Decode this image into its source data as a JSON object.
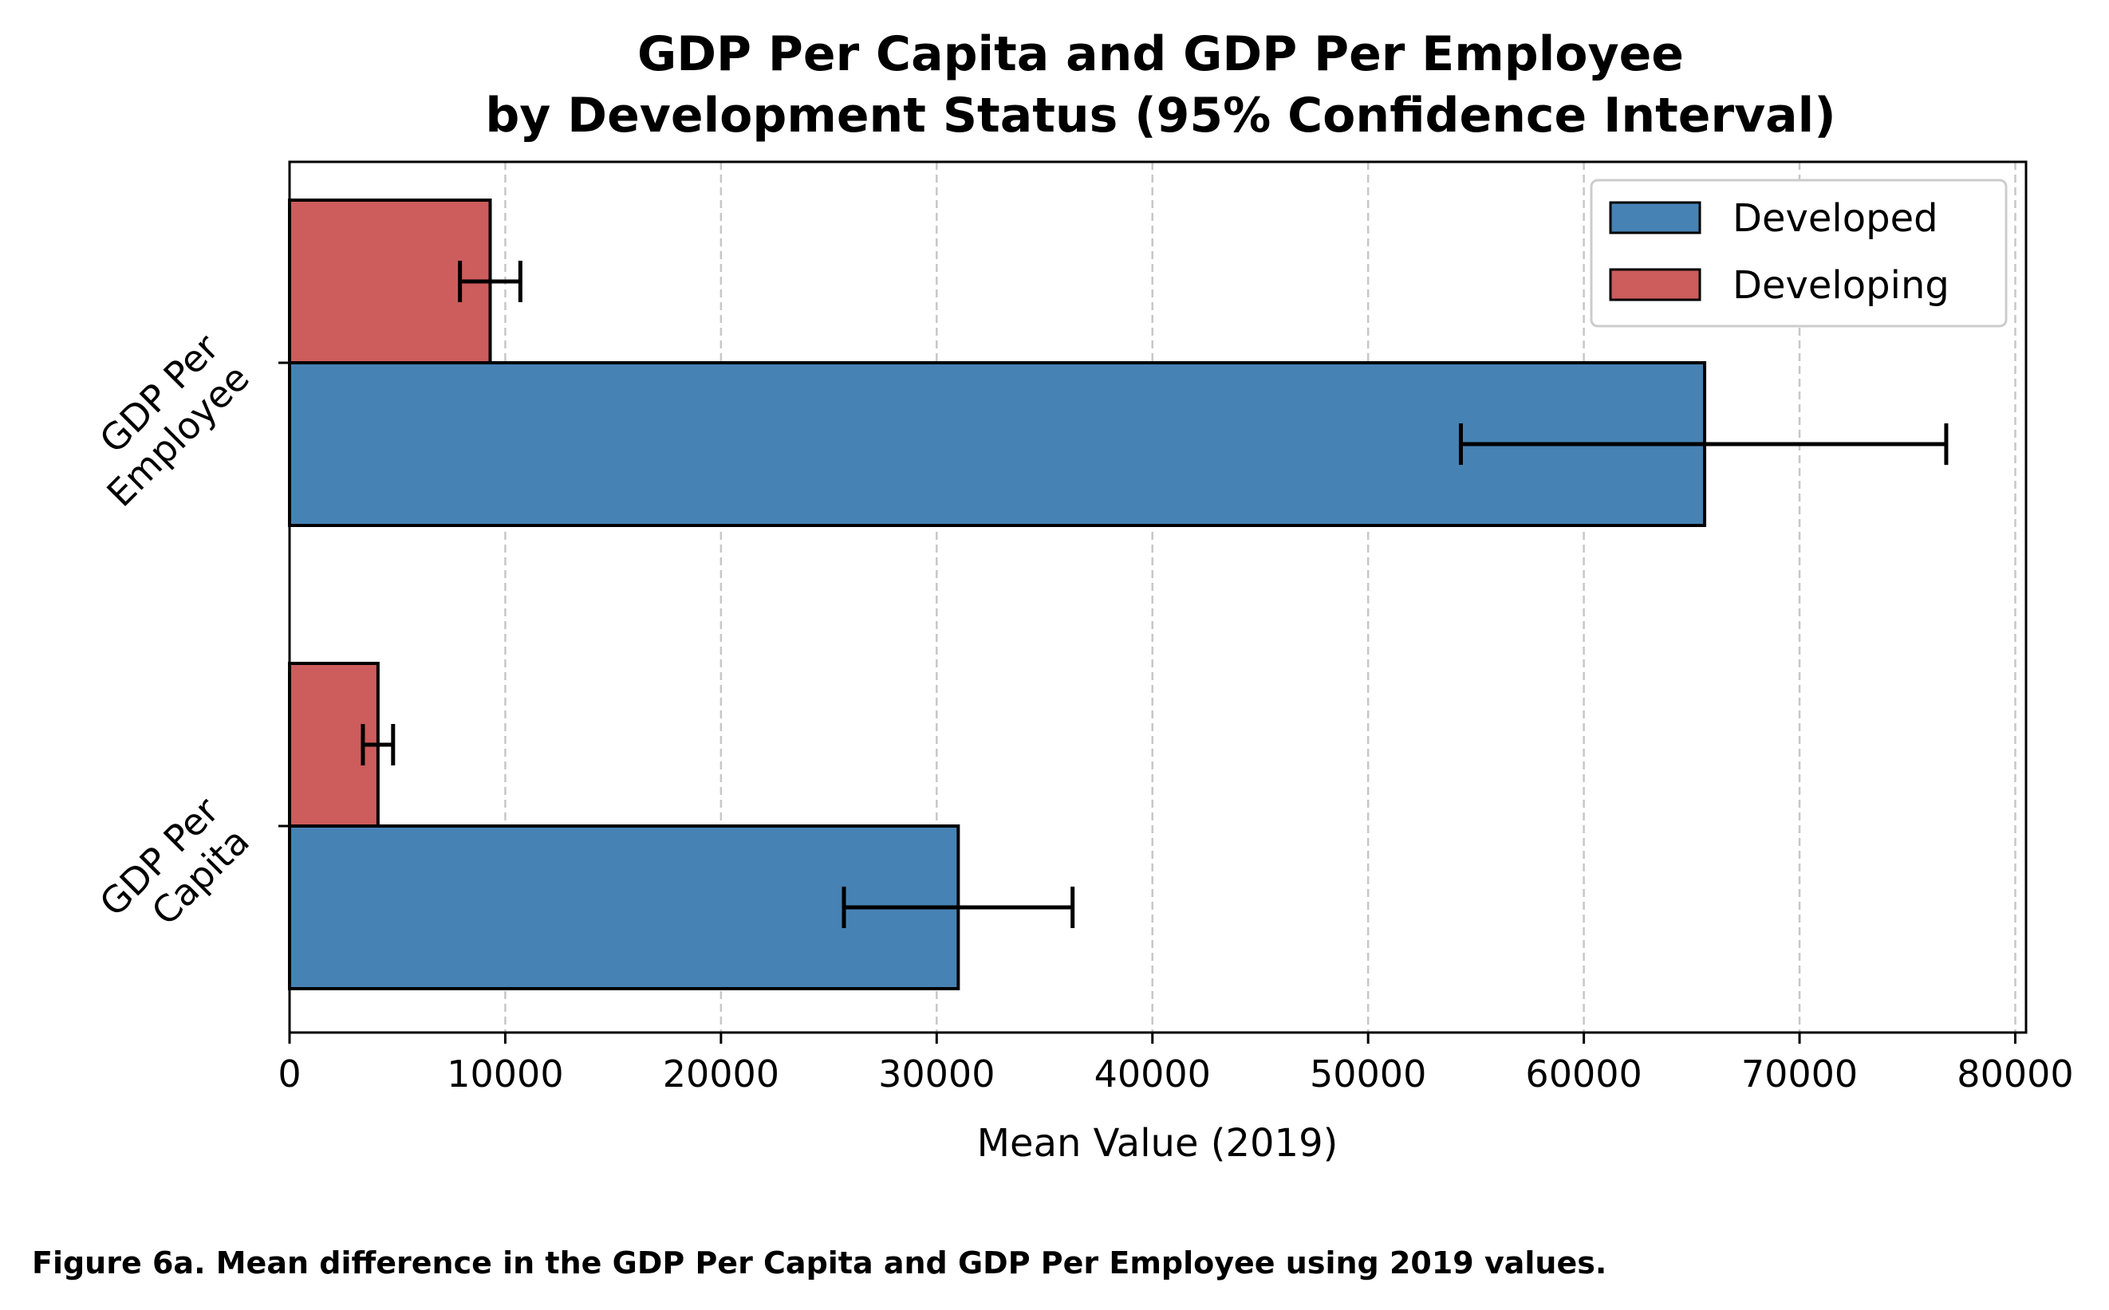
{
  "chart_data": {
    "type": "bar",
    "orientation": "horizontal",
    "title": [
      "GDP Per Capita and GDP Per Employee",
      "by Development Status (95% Confidence Interval)"
    ],
    "categories": [
      {
        "lines": [
          "GDP Per",
          "Capita"
        ]
      },
      {
        "lines": [
          "GDP Per",
          "Employee"
        ]
      }
    ],
    "series": [
      {
        "name": "Developed",
        "color": "#4682b4",
        "values": [
          31000,
          65600
        ],
        "ci_low": [
          25700,
          54300
        ],
        "ci_high": [
          36300,
          76800
        ]
      },
      {
        "name": "Developing",
        "color": "#cd5c5c",
        "values": [
          4100,
          9300
        ],
        "ci_low": [
          3400,
          7900
        ],
        "ci_high": [
          4800,
          10700
        ]
      }
    ],
    "xlabel": "Mean Value (2019)",
    "xlim": [
      0,
      80500
    ],
    "xticks": [
      0,
      10000,
      20000,
      30000,
      40000,
      50000,
      60000,
      70000,
      80000
    ],
    "grid": "x-dashed",
    "legend": "top-right"
  },
  "caption": "Figure 6a. Mean difference in the GDP Per Capita and GDP Per Employee using 2019 values."
}
